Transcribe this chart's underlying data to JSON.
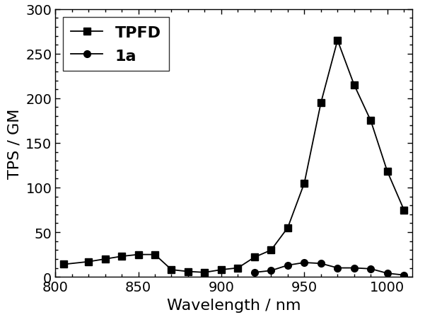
{
  "TPFD_x": [
    805,
    820,
    830,
    840,
    850,
    860,
    870,
    880,
    890,
    900,
    910,
    920,
    930,
    940,
    950,
    960,
    970,
    980,
    990,
    1000,
    1010
  ],
  "TPFD_y": [
    14,
    17,
    20,
    23,
    25,
    25,
    8,
    6,
    5,
    8,
    10,
    22,
    30,
    55,
    105,
    195,
    265,
    215,
    175,
    118,
    75
  ],
  "1a_x": [
    920,
    930,
    940,
    950,
    960,
    970,
    980,
    990,
    1000,
    1010
  ],
  "1a_y": [
    5,
    7,
    13,
    16,
    15,
    10,
    10,
    9,
    4,
    2
  ],
  "xlabel": "Wavelength / nm",
  "ylabel": "TPS / GM",
  "xlim": [
    800,
    1015
  ],
  "ylim": [
    0,
    300
  ],
  "yticks": [
    0,
    50,
    100,
    150,
    200,
    250,
    300
  ],
  "xticks": [
    800,
    850,
    900,
    950,
    1000
  ],
  "legend_labels": [
    "TPFD",
    "1a"
  ],
  "line_color": "#000000",
  "bg_color": "#ffffff",
  "label_fontsize": 16,
  "tick_fontsize": 14,
  "legend_fontsize": 16
}
